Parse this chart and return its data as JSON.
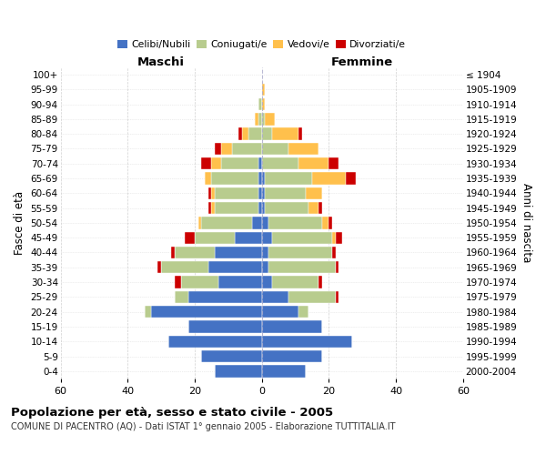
{
  "age_groups": [
    "0-4",
    "5-9",
    "10-14",
    "15-19",
    "20-24",
    "25-29",
    "30-34",
    "35-39",
    "40-44",
    "45-49",
    "50-54",
    "55-59",
    "60-64",
    "65-69",
    "70-74",
    "75-79",
    "80-84",
    "85-89",
    "90-94",
    "95-99",
    "100+"
  ],
  "birth_years": [
    "2000-2004",
    "1995-1999",
    "1990-1994",
    "1985-1989",
    "1980-1984",
    "1975-1979",
    "1970-1974",
    "1965-1969",
    "1960-1964",
    "1955-1959",
    "1950-1954",
    "1945-1949",
    "1940-1944",
    "1935-1939",
    "1930-1934",
    "1925-1929",
    "1920-1924",
    "1915-1919",
    "1910-1914",
    "1905-1909",
    "≤ 1904"
  ],
  "maschi": {
    "celibi": [
      14,
      18,
      28,
      22,
      33,
      22,
      13,
      16,
      14,
      8,
      3,
      1,
      1,
      1,
      1,
      0,
      0,
      0,
      0,
      0,
      0
    ],
    "coniugati": [
      0,
      0,
      0,
      0,
      2,
      4,
      11,
      14,
      12,
      12,
      15,
      13,
      13,
      14,
      11,
      9,
      4,
      1,
      1,
      0,
      0
    ],
    "vedovi": [
      0,
      0,
      0,
      0,
      0,
      0,
      0,
      0,
      0,
      0,
      1,
      1,
      1,
      2,
      3,
      3,
      2,
      1,
      0,
      0,
      0
    ],
    "divorziati": [
      0,
      0,
      0,
      0,
      0,
      0,
      2,
      1,
      1,
      3,
      0,
      1,
      1,
      0,
      3,
      2,
      1,
      0,
      0,
      0,
      0
    ]
  },
  "femmine": {
    "nubili": [
      13,
      18,
      27,
      18,
      11,
      8,
      3,
      2,
      2,
      3,
      2,
      1,
      1,
      1,
      0,
      0,
      0,
      0,
      0,
      0,
      0
    ],
    "coniugate": [
      0,
      0,
      0,
      0,
      3,
      14,
      14,
      20,
      19,
      18,
      16,
      13,
      12,
      14,
      11,
      8,
      3,
      1,
      0,
      0,
      0
    ],
    "vedove": [
      0,
      0,
      0,
      0,
      0,
      0,
      0,
      0,
      0,
      1,
      2,
      3,
      5,
      10,
      9,
      9,
      8,
      3,
      1,
      1,
      0
    ],
    "divorziate": [
      0,
      0,
      0,
      0,
      0,
      1,
      1,
      1,
      1,
      2,
      1,
      1,
      0,
      3,
      3,
      0,
      1,
      0,
      0,
      0,
      0
    ]
  },
  "colors": {
    "celibi": "#4472c4",
    "coniugati": "#b8cc8e",
    "vedovi": "#ffc04c",
    "divorziati": "#cc0000"
  },
  "xlim": 60,
  "xticks": [
    60,
    40,
    20,
    0,
    20,
    40,
    60
  ],
  "title": "Popolazione per età, sesso e stato civile - 2005",
  "subtitle": "COMUNE DI PACENTRO (AQ) - Dati ISTAT 1° gennaio 2005 - Elaborazione TUTTITALIA.IT",
  "ylabel": "Fasce di età",
  "ylabel_right": "Anni di nascita",
  "legend_labels": [
    "Celibi/Nubili",
    "Coniugati/e",
    "Vedovi/e",
    "Divorziati/e"
  ],
  "background_color": "#ffffff",
  "grid_color": "#cccccc"
}
